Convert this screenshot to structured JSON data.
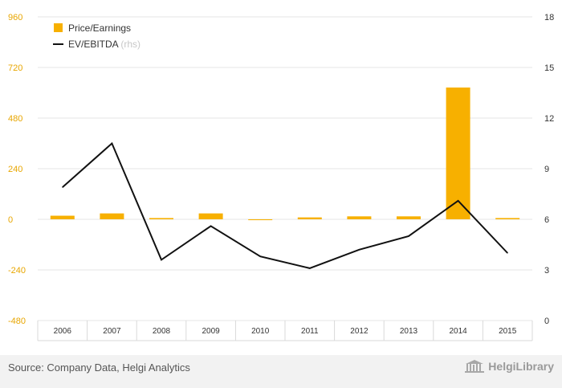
{
  "chart_data": {
    "type": "bar+line",
    "categories": [
      "2006",
      "2007",
      "2008",
      "2009",
      "2010",
      "2011",
      "2012",
      "2013",
      "2014",
      "2015"
    ],
    "series": [
      {
        "name": "Price/Earnings",
        "type": "bar",
        "axis": "left",
        "color": "#f7b000",
        "values": [
          17,
          28,
          6,
          28,
          -4,
          9,
          14,
          14,
          625,
          6
        ]
      },
      {
        "name": "EV/EBITDA",
        "name_suffix": "(rhs)",
        "type": "line",
        "axis": "right",
        "color": "#111111",
        "values": [
          7.9,
          10.5,
          3.6,
          5.6,
          3.8,
          3.1,
          4.2,
          5.0,
          7.1,
          4.0
        ]
      }
    ],
    "left_axis": {
      "min": -480,
      "max": 960,
      "ticks": [
        "960",
        "720",
        "480",
        "240",
        "0",
        "-240",
        "-480"
      ]
    },
    "right_axis": {
      "min": 0,
      "max": 18,
      "ticks": [
        "18",
        "15",
        "12",
        "9",
        "6",
        "3",
        "0"
      ]
    }
  },
  "legend": {
    "pe_label": "Price/Earnings",
    "ev_label": "EV/EBITDA",
    "ev_suffix": "(rhs)"
  },
  "footer": {
    "source": "Source: Company Data, Helgi Analytics",
    "logo_text": "HelgiLibrary"
  },
  "colors": {
    "bar": "#f7b000",
    "line": "#111111",
    "left_tick": "#e8a600",
    "grid": "#e6e6e6"
  }
}
